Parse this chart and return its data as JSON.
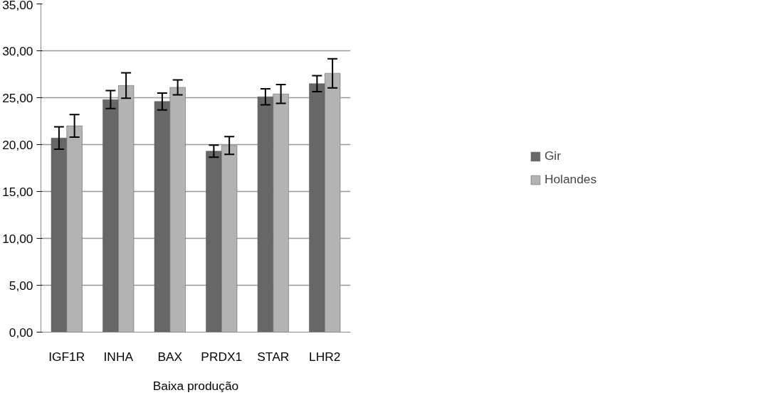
{
  "chart_data": {
    "type": "bar",
    "xlabel": "Baixa produção",
    "categories": [
      "IGF1R",
      "INHA",
      "BAX",
      "PRDX1",
      "STAR",
      "LHR2"
    ],
    "series": [
      {
        "name": "Gir",
        "color": "#676767",
        "values": [
          20.7,
          24.8,
          24.6,
          19.3,
          25.1,
          26.5
        ],
        "errors": [
          1.2,
          0.95,
          0.9,
          0.65,
          0.85,
          0.85
        ]
      },
      {
        "name": "Holandes",
        "color": "#b3b3b3",
        "values": [
          22.0,
          26.3,
          26.1,
          19.9,
          25.4,
          27.6
        ],
        "errors": [
          1.2,
          1.35,
          0.8,
          0.95,
          1.0,
          1.55
        ]
      }
    ],
    "ylim": [
      0,
      35
    ],
    "yticks": [
      {
        "value": 0,
        "label": "0,00"
      },
      {
        "value": 5,
        "label": "5,00"
      },
      {
        "value": 10,
        "label": "10,00"
      },
      {
        "value": 15,
        "label": "15,00"
      },
      {
        "value": 20,
        "label": "20,00"
      },
      {
        "value": 25,
        "label": "25,00"
      },
      {
        "value": 30,
        "label": "30,00"
      },
      {
        "value": 35,
        "label": "35,00"
      }
    ],
    "grid": "y",
    "legend": "right"
  }
}
